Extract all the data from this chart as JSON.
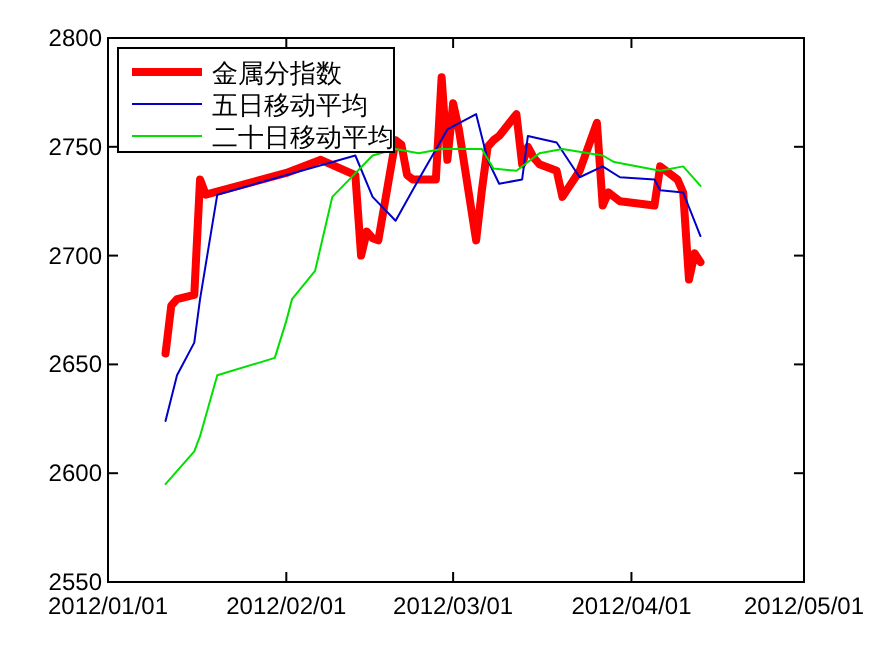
{
  "chart_data": {
    "type": "line",
    "xlim": [
      "2012-01-01",
      "2012-05-01"
    ],
    "xticks": [
      {
        "value": "2012-01-01",
        "label": "2012/01/01"
      },
      {
        "value": "2012-02-01",
        "label": "2012/02/01"
      },
      {
        "value": "2012-03-01",
        "label": "2012/03/01"
      },
      {
        "value": "2012-04-01",
        "label": "2012/04/01"
      },
      {
        "value": "2012-05-01",
        "label": "2012/05/01"
      }
    ],
    "ylim": [
      2550,
      2800
    ],
    "yticks": [
      2550,
      2600,
      2650,
      2700,
      2750,
      2800
    ],
    "grid": false,
    "legend": "top left",
    "marker": "none",
    "line_style": "solid",
    "series": [
      {
        "name": "金属分指数",
        "color": "#ff0000",
        "x": [
          "2012-01-11",
          "2012-01-12",
          "2012-01-13",
          "2012-01-16",
          "2012-01-17",
          "2012-01-18",
          "2012-02-01",
          "2012-02-07",
          "2012-02-13",
          "2012-02-14",
          "2012-02-15",
          "2012-02-16",
          "2012-02-17",
          "2012-02-20",
          "2012-02-21",
          "2012-02-22",
          "2012-02-23",
          "2012-02-24",
          "2012-02-27",
          "2012-02-28",
          "2012-02-29",
          "2012-03-01",
          "2012-03-02",
          "2012-03-05",
          "2012-03-06",
          "2012-03-07",
          "2012-03-08",
          "2012-03-09",
          "2012-03-12",
          "2012-03-13",
          "2012-03-14",
          "2012-03-15",
          "2012-03-16",
          "2012-03-19",
          "2012-03-20",
          "2012-03-21",
          "2012-03-22",
          "2012-03-23",
          "2012-03-26",
          "2012-03-27",
          "2012-03-28",
          "2012-03-29",
          "2012-03-30",
          "2012-04-05",
          "2012-04-06",
          "2012-04-09",
          "2012-04-10",
          "2012-04-11",
          "2012-04-12",
          "2012-04-13"
        ],
        "values": [
          2655,
          2677,
          2680,
          2682,
          2735,
          2728,
          2738,
          2744,
          2737,
          2700,
          2711,
          2708,
          2707,
          2753,
          2751,
          2737,
          2735,
          2735,
          2735,
          2782,
          2744,
          2770,
          2758,
          2707,
          2730,
          2750,
          2753,
          2755,
          2765,
          2742,
          2750,
          2745,
          2742,
          2739,
          2727,
          2731,
          2735,
          2739,
          2761,
          2723,
          2729,
          2727,
          2725,
          2723,
          2741,
          2735,
          2729,
          2689,
          2701,
          2697
        ]
      },
      {
        "name": "五日移动平均",
        "color": "#0000c8",
        "x": [
          "2012-01-11",
          "2012-01-13",
          "2012-01-16",
          "2012-01-17",
          "2012-01-20",
          "2012-02-13",
          "2012-02-16",
          "2012-02-20",
          "2012-02-24",
          "2012-02-29",
          "2012-03-05",
          "2012-03-07",
          "2012-03-09",
          "2012-03-13",
          "2012-03-14",
          "2012-03-19",
          "2012-03-23",
          "2012-03-27",
          "2012-03-30",
          "2012-04-05",
          "2012-04-06",
          "2012-04-10",
          "2012-04-13"
        ],
        "values": [
          2624,
          2645,
          2660,
          2680,
          2728,
          2746,
          2727,
          2716,
          2735,
          2758,
          2765,
          2744,
          2733,
          2735,
          2755,
          2752,
          2736,
          2741,
          2736,
          2735,
          2730,
          2729,
          2709
        ]
      },
      {
        "name": "二十日移动平均",
        "color": "#00e000",
        "x": [
          "2012-01-11",
          "2012-01-16",
          "2012-01-17",
          "2012-01-20",
          "2012-01-30",
          "2012-02-01",
          "2012-02-02",
          "2012-02-06",
          "2012-02-09",
          "2012-02-16",
          "2012-02-20",
          "2012-02-24",
          "2012-02-28",
          "2012-03-06",
          "2012-03-08",
          "2012-03-12",
          "2012-03-16",
          "2012-03-20",
          "2012-03-27",
          "2012-03-29",
          "2012-04-06",
          "2012-04-10",
          "2012-04-13"
        ],
        "values": [
          2595,
          2610,
          2617,
          2645,
          2653,
          2670,
          2680,
          2693,
          2727,
          2746,
          2749,
          2747,
          2749,
          2749,
          2740,
          2739,
          2747,
          2749,
          2746,
          2743,
          2739,
          2741,
          2732
        ]
      }
    ]
  }
}
